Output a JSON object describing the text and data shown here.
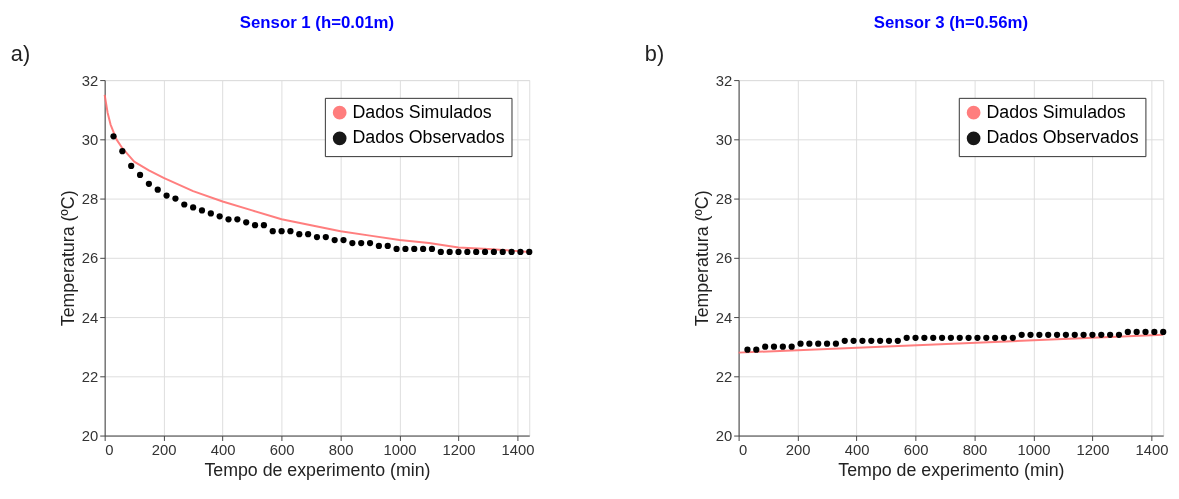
{
  "chart_data": [
    {
      "type": "line",
      "title": "Sensor 1 (h=0.01m)",
      "xlabel": "Tempo de experimento (min)",
      "ylabel": "Temperatura (ºC)",
      "annotations": [
        "a)"
      ],
      "xlim": [
        0,
        1440
      ],
      "xticks": [
        0,
        200,
        400,
        600,
        800,
        1000,
        1200,
        1400
      ],
      "ylim": [
        20,
        32
      ],
      "yticks": [
        20,
        22,
        24,
        26,
        28,
        30,
        32
      ],
      "grid": true,
      "legend": "top right",
      "series": [
        {
          "name": "Dados Simulados",
          "type": "line",
          "color": "#ff7070",
          "x": [
            0,
            10,
            20,
            40,
            60,
            100,
            150,
            200,
            300,
            400,
            500,
            600,
            700,
            800,
            900,
            1000,
            1100,
            1200,
            1300,
            1440
          ],
          "values": [
            31.5,
            30.9,
            30.5,
            30.0,
            29.7,
            29.25,
            28.95,
            28.7,
            28.25,
            27.9,
            27.6,
            27.3,
            27.1,
            26.9,
            26.75,
            26.6,
            26.5,
            26.35,
            26.3,
            26.2
          ]
        },
        {
          "name": "Dados Observados",
          "type": "scatter",
          "marker": "circle",
          "color": "#000000",
          "x": [
            30,
            60,
            90,
            120,
            150,
            180,
            210,
            240,
            270,
            300,
            330,
            360,
            390,
            420,
            450,
            480,
            510,
            540,
            570,
            600,
            630,
            660,
            690,
            720,
            750,
            780,
            810,
            840,
            870,
            900,
            930,
            960,
            990,
            1020,
            1050,
            1080,
            1110,
            1140,
            1170,
            1200,
            1230,
            1260,
            1290,
            1320,
            1350,
            1380,
            1410,
            1440
          ],
          "values": [
            30.1,
            29.6,
            29.1,
            28.8,
            28.5,
            28.3,
            28.1,
            28.0,
            27.8,
            27.7,
            27.6,
            27.5,
            27.4,
            27.3,
            27.3,
            27.2,
            27.1,
            27.1,
            26.9,
            26.9,
            26.9,
            26.8,
            26.8,
            26.7,
            26.7,
            26.6,
            26.6,
            26.5,
            26.5,
            26.5,
            26.4,
            26.4,
            26.3,
            26.3,
            26.3,
            26.3,
            26.3,
            26.2,
            26.2,
            26.2,
            26.2,
            26.2,
            26.2,
            26.2,
            26.2,
            26.2,
            26.2,
            26.2
          ]
        }
      ]
    },
    {
      "type": "line",
      "title": "Sensor 3 (h=0.56m)",
      "xlabel": "Tempo de experimento (min)",
      "ylabel": "Temperatura (ºC)",
      "annotations": [
        "b)"
      ],
      "xlim": [
        0,
        1440
      ],
      "xticks": [
        0,
        200,
        400,
        600,
        800,
        1000,
        1200,
        1400
      ],
      "ylim": [
        20,
        32
      ],
      "yticks": [
        20,
        22,
        24,
        26,
        28,
        30,
        32
      ],
      "grid": true,
      "legend": "top right",
      "series": [
        {
          "name": "Dados Simulados",
          "type": "line",
          "color": "#ff7070",
          "x": [
            0,
            1440
          ],
          "values": [
            22.8,
            23.4
          ]
        },
        {
          "name": "Dados Observados",
          "type": "scatter",
          "marker": "circle",
          "color": "#000000",
          "x": [
            30,
            60,
            90,
            120,
            150,
            180,
            210,
            240,
            270,
            300,
            330,
            360,
            390,
            420,
            450,
            480,
            510,
            540,
            570,
            600,
            630,
            660,
            690,
            720,
            750,
            780,
            810,
            840,
            870,
            900,
            930,
            960,
            990,
            1020,
            1050,
            1080,
            1110,
            1140,
            1170,
            1200,
            1230,
            1260,
            1290,
            1320,
            1350,
            1380,
            1410,
            1440
          ],
          "values": [
            22.9,
            22.9,
            23.0,
            23.0,
            23.0,
            23.0,
            23.1,
            23.1,
            23.1,
            23.1,
            23.1,
            23.2,
            23.2,
            23.2,
            23.2,
            23.2,
            23.2,
            23.2,
            23.3,
            23.3,
            23.3,
            23.3,
            23.3,
            23.3,
            23.3,
            23.3,
            23.3,
            23.3,
            23.3,
            23.3,
            23.3,
            23.4,
            23.4,
            23.4,
            23.4,
            23.4,
            23.4,
            23.4,
            23.4,
            23.4,
            23.4,
            23.4,
            23.4,
            23.5,
            23.5,
            23.5,
            23.5,
            23.5
          ]
        }
      ]
    }
  ]
}
